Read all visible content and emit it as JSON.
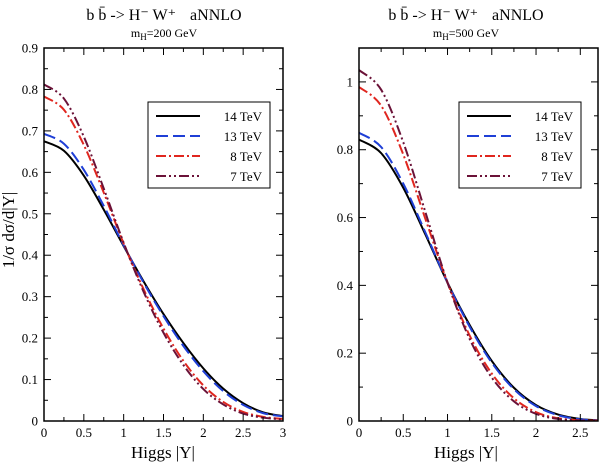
{
  "chart_data": [
    {
      "type": "line",
      "title": "b b̄ -> H⁻ W⁺   aNNLO",
      "subtitle": "m_H=200 GeV",
      "title_parts": {
        "process": "b b̄ -> H⁻ W⁺",
        "order": "aNNLO",
        "mass_label": "m",
        "mass_sub": "H",
        "mass_value": "=200 GeV"
      },
      "xlabel": "Higgs  |Y|",
      "ylabel": "1/σ  dσ/d|Y|",
      "xlim": [
        0,
        3
      ],
      "ylim": [
        0,
        0.9
      ],
      "xticks": [
        0,
        0.5,
        1,
        1.5,
        2,
        2.5,
        3
      ],
      "xtick_labels": [
        "0",
        "0.5",
        "1",
        "1.5",
        "2",
        "2.5",
        "3"
      ],
      "yticks": [
        0,
        0.1,
        0.2,
        0.3,
        0.4,
        0.5,
        0.6,
        0.7,
        0.8,
        0.9
      ],
      "ytick_labels": [
        "0",
        "0.1",
        "0.2",
        "0.3",
        "0.4",
        "0.5",
        "0.6",
        "0.7",
        "0.8",
        "0.9"
      ],
      "grid": false,
      "legend": "top-right",
      "x": [
        0,
        0.25,
        0.5,
        0.75,
        1.0,
        1.25,
        1.5,
        1.75,
        2.0,
        2.25,
        2.5,
        2.75,
        3.0
      ],
      "series": [
        {
          "name": "14 TeV",
          "color": "#000000",
          "dash": "solid",
          "values": [
            0.675,
            0.652,
            0.592,
            0.51,
            0.422,
            0.337,
            0.258,
            0.188,
            0.127,
            0.078,
            0.043,
            0.021,
            0.012
          ]
        },
        {
          "name": "13 TeV",
          "color": "#1f3fd6",
          "dash": "dashed",
          "values": [
            0.693,
            0.669,
            0.606,
            0.519,
            0.424,
            0.334,
            0.253,
            0.181,
            0.12,
            0.072,
            0.039,
            0.019,
            0.011
          ]
        },
        {
          "name": "8 TeV",
          "color": "#e0261f",
          "dash": "dashdot",
          "values": [
            0.783,
            0.751,
            0.666,
            0.551,
            0.428,
            0.318,
            0.223,
            0.145,
            0.086,
            0.046,
            0.022,
            0.01,
            0.005
          ]
        },
        {
          "name": "7 TeV",
          "color": "#6b1238",
          "dash": "dashdotdot",
          "values": [
            0.812,
            0.778,
            0.686,
            0.561,
            0.43,
            0.312,
            0.213,
            0.135,
            0.077,
            0.04,
            0.018,
            0.008,
            0.004
          ]
        }
      ]
    },
    {
      "type": "line",
      "title": "b b̄ -> H⁻ W⁺   aNNLO",
      "subtitle": "m_H=500 GeV",
      "title_parts": {
        "process": "b b̄ -> H⁻ W⁺",
        "order": "aNNLO",
        "mass_label": "m",
        "mass_sub": "H",
        "mass_value": "=500 GeV"
      },
      "xlabel": "Higgs  |Y|",
      "ylabel": "",
      "xlim": [
        0,
        2.7
      ],
      "ylim": [
        0,
        1.1
      ],
      "xticks": [
        0,
        0.5,
        1,
        1.5,
        2,
        2.5
      ],
      "xtick_labels": [
        "0",
        "0.5",
        "1",
        "1.5",
        "2",
        "2.5"
      ],
      "yticks": [
        0,
        0.2,
        0.4,
        0.6,
        0.8,
        1.0
      ],
      "ytick_labels": [
        "0",
        "0.2",
        "0.4",
        "0.6",
        "0.8",
        "1"
      ],
      "grid": false,
      "legend": "top-right",
      "x": [
        0,
        0.25,
        0.5,
        0.75,
        1.0,
        1.25,
        1.5,
        1.75,
        2.0,
        2.25,
        2.5,
        2.7
      ],
      "series": [
        {
          "name": "14 TeV",
          "color": "#000000",
          "dash": "solid",
          "values": [
            0.83,
            0.79,
            0.688,
            0.55,
            0.408,
            0.283,
            0.177,
            0.098,
            0.047,
            0.019,
            0.006,
            0.002
          ]
        },
        {
          "name": "13 TeV",
          "color": "#1f3fd6",
          "dash": "dashed",
          "values": [
            0.85,
            0.808,
            0.7,
            0.556,
            0.408,
            0.278,
            0.172,
            0.094,
            0.044,
            0.017,
            0.005,
            0.002
          ]
        },
        {
          "name": "8 TeV",
          "color": "#e0261f",
          "dash": "dashdot",
          "values": [
            0.985,
            0.93,
            0.786,
            0.596,
            0.408,
            0.252,
            0.14,
            0.067,
            0.026,
            0.008,
            0.002,
            0.001
          ]
        },
        {
          "name": "7 TeV",
          "color": "#6b1238",
          "dash": "dashdotdot",
          "values": [
            1.035,
            0.977,
            0.822,
            0.616,
            0.408,
            0.242,
            0.128,
            0.058,
            0.021,
            0.006,
            0.001,
            0.0005
          ]
        }
      ]
    }
  ]
}
